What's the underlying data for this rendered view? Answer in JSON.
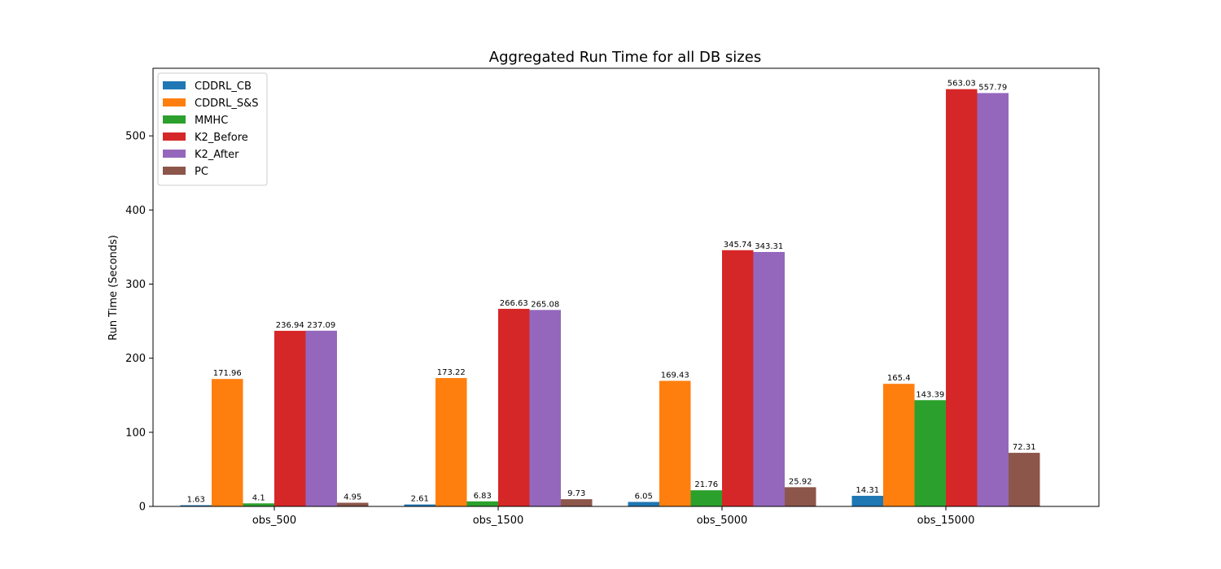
{
  "chart_data": {
    "type": "bar",
    "title": "Aggregated Run Time for all DB sizes",
    "xlabel": "",
    "ylabel": "Run Time (Seconds)",
    "categories": [
      "obs_500",
      "obs_1500",
      "obs_5000",
      "obs_15000"
    ],
    "ylim": [
      0,
      591.2
    ],
    "yticks": [
      0,
      100,
      200,
      300,
      400,
      500
    ],
    "grid": false,
    "legend_position": "top-left",
    "series": [
      {
        "name": "CDDRL_CB",
        "color": "#1f77b4",
        "values": [
          1.63,
          2.61,
          6.05,
          14.31
        ],
        "labels": [
          "1.63",
          "2.61",
          "6.05",
          "14.31"
        ]
      },
      {
        "name": "CDDRL_S&S",
        "color": "#ff7f0e",
        "values": [
          171.96,
          173.22,
          169.43,
          165.4
        ],
        "labels": [
          "171.96",
          "173.22",
          "169.43",
          "165.4"
        ]
      },
      {
        "name": "MMHC",
        "color": "#2ca02c",
        "values": [
          4.1,
          6.83,
          21.76,
          143.39
        ],
        "labels": [
          "4.1",
          "6.83",
          "21.76",
          "143.39"
        ]
      },
      {
        "name": "K2_Before",
        "color": "#d62728",
        "values": [
          236.94,
          266.63,
          345.74,
          563.03
        ],
        "labels": [
          "236.94",
          "266.63",
          "345.74",
          "563.03"
        ]
      },
      {
        "name": "K2_After",
        "color": "#9467bd",
        "values": [
          237.09,
          265.08,
          343.31,
          557.79
        ],
        "labels": [
          "237.09",
          "265.08",
          "343.31",
          "557.79"
        ]
      },
      {
        "name": "PC",
        "color": "#8c564b",
        "values": [
          4.95,
          9.73,
          25.92,
          72.31
        ],
        "labels": [
          "4.95",
          "9.73",
          "25.92",
          "72.31"
        ]
      }
    ]
  }
}
